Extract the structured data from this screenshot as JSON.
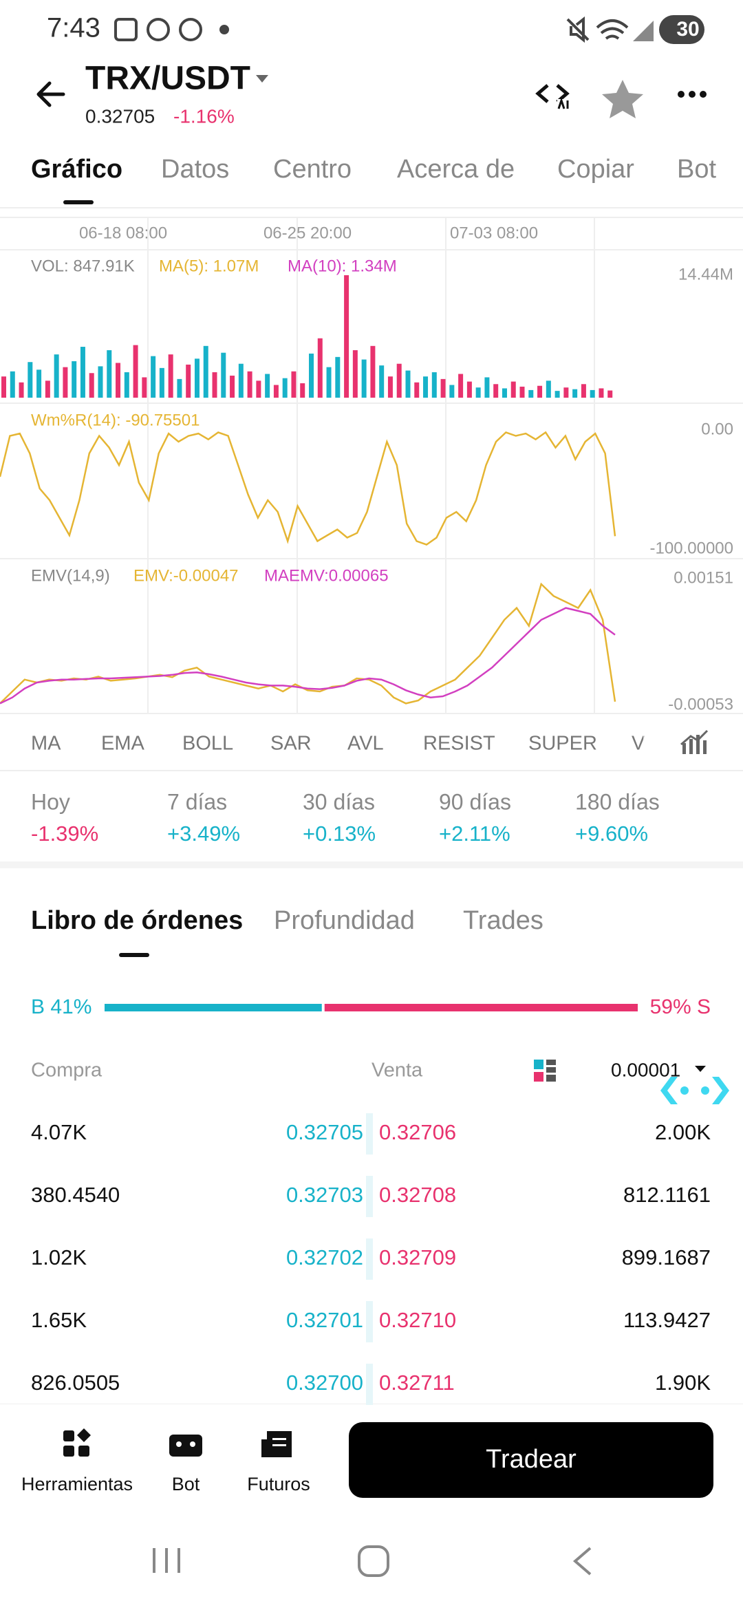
{
  "status_bar": {
    "time": "7:43",
    "battery": "30"
  },
  "header": {
    "pair": "TRX/USDT",
    "price": "0.32705",
    "change": "-1.16%"
  },
  "tabs": [
    "Gráfico",
    "Datos",
    "Centro",
    "Acerca de",
    "Copiar",
    "Bot"
  ],
  "chart": {
    "dates": [
      "06-18 08:00",
      "06-25 20:00",
      "07-03 08:00"
    ],
    "volume": {
      "labels": [
        "VOL: 847.91K",
        "MA(5): 1.07M",
        "MA(10): 1.34M"
      ],
      "ylim": [
        0,
        14.44
      ],
      "yticks": [
        {
          "value": 14.44,
          "label": "14.44M"
        }
      ],
      "values": [
        2.5,
        3.1,
        1.8,
        4.2,
        3.3,
        2.0,
        5.1,
        3.6,
        4.3,
        6.0,
        2.9,
        3.7,
        5.6,
        4.1,
        3.0,
        6.2,
        2.4,
        4.9,
        3.5,
        5.1,
        2.2,
        3.9,
        4.6,
        6.1,
        3.0,
        5.3,
        2.6,
        4.0,
        3.1,
        2.0,
        2.8,
        1.5,
        2.3,
        3.1,
        1.7,
        5.2,
        7.0,
        3.6,
        4.8,
        14.44,
        5.6,
        4.5,
        6.1,
        3.8,
        2.5,
        4.0,
        3.2,
        1.8,
        2.5,
        3.0,
        2.2,
        1.5,
        2.8,
        1.9,
        1.2,
        2.4,
        1.6,
        1.1,
        1.9,
        1.3,
        0.9,
        1.4,
        2.0,
        0.8,
        1.2,
        1.0,
        1.6,
        0.9,
        1.1,
        0.84791
      ],
      "up": [
        0,
        1,
        0,
        1,
        1,
        0,
        1,
        0,
        1,
        1,
        0,
        1,
        1,
        0,
        1,
        0,
        0,
        1,
        1,
        0,
        1,
        0,
        1,
        1,
        0,
        1,
        0,
        1,
        0,
        0,
        1,
        0,
        1,
        0,
        0,
        1,
        0,
        1,
        1,
        0,
        0,
        1,
        0,
        1,
        0,
        0,
        1,
        0,
        1,
        1,
        0,
        1,
        0,
        0,
        1,
        1,
        0,
        1,
        0,
        0,
        1,
        0,
        1,
        1,
        0,
        1,
        0,
        1,
        0,
        0
      ],
      "colors": [
        "#e8326e",
        "#17b2c9"
      ]
    },
    "wr": {
      "label": "Wm%R(14): -90.75501",
      "ylim": [
        -100,
        0
      ],
      "yticks": [
        {
          "value": 0,
          "label": "0.00"
        },
        {
          "value": -100,
          "label": "-100.00000"
        }
      ],
      "color": "#e5b533",
      "values": [
        -40,
        -5,
        -3,
        -20,
        -50,
        -60,
        -75,
        -90,
        -60,
        -20,
        -5,
        -15,
        -30,
        -10,
        -45,
        -60,
        -20,
        -3,
        -10,
        -5,
        -3,
        -8,
        -2,
        -5,
        -30,
        -55,
        -75,
        -60,
        -70,
        -95,
        -65,
        -80,
        -95,
        -90,
        -85,
        -92,
        -88,
        -70,
        -40,
        -10,
        -30,
        -80,
        -95,
        -98,
        -92,
        -75,
        -70,
        -78,
        -60,
        -30,
        -10,
        -2,
        -5,
        -3,
        -8,
        -2,
        -15,
        -5,
        -25,
        -10,
        -3,
        -20,
        -90.75501
      ]
    },
    "emv": {
      "labels": [
        "EMV(14,9)",
        "EMV:-0.00047",
        "MAEMV:0.00065"
      ],
      "ylim": [
        -0.00053,
        0.00151
      ],
      "yticks": [
        {
          "value": 0.00151,
          "label": "0.00151"
        },
        {
          "value": -0.00053,
          "label": "-0.00053"
        }
      ],
      "series": [
        {
          "color": "#e5b533",
          "values": [
            -0.0005,
            -0.0003,
            -0.0001,
            -0.00015,
            -0.0001,
            -0.00012,
            -8e-05,
            -0.0001,
            -5e-05,
            -0.00012,
            -0.0001,
            -8e-05,
            -5e-05,
            -2e-05,
            -6e-05,
            5e-05,
            0.0001,
            -5e-05,
            -0.0001,
            -0.00015,
            -0.0002,
            -0.00025,
            -0.0002,
            -0.0003,
            -0.00018,
            -0.00028,
            -0.0003,
            -0.00022,
            -0.0002,
            -8e-05,
            -0.0001,
            -0.0002,
            -0.0004,
            -0.0005,
            -0.00045,
            -0.0003,
            -0.0002,
            -0.0001,
            0.0001,
            0.0003,
            0.0006,
            0.0009,
            0.0011,
            0.0008,
            0.0015,
            0.0013,
            0.0012,
            0.0011,
            0.0014,
            0.0009,
            -0.00047
          ]
        },
        {
          "color": "#d23fc0",
          "values": [
            -0.0005,
            -0.0004,
            -0.00025,
            -0.00015,
            -0.00012,
            -0.0001,
            -0.0001,
            -9e-05,
            -8e-05,
            -8e-05,
            -7e-05,
            -6e-05,
            -5e-05,
            -4e-05,
            -2e-05,
            1e-05,
            2e-05,
            -1e-05,
            -5e-05,
            -0.0001,
            -0.00015,
            -0.00018,
            -0.0002,
            -0.0002,
            -0.00022,
            -0.00025,
            -0.00026,
            -0.00024,
            -0.0002,
            -0.00012,
            -8e-05,
            -0.0001,
            -0.00018,
            -0.00028,
            -0.00035,
            -0.0004,
            -0.00038,
            -0.0003,
            -0.0002,
            -5e-05,
            0.0001,
            0.0003,
            0.0005,
            0.0007,
            0.0009,
            0.001,
            0.0011,
            0.00105,
            0.001,
            0.0008,
            0.00065
          ]
        }
      ]
    }
  },
  "indicators": [
    "MA",
    "EMA",
    "BOLL",
    "SAR",
    "AVL",
    "RESIST",
    "SUPER",
    "V"
  ],
  "periods": [
    {
      "label": "Hoy",
      "change": "-1.39%"
    },
    {
      "label": "7 días",
      "change": "+3.49%"
    },
    {
      "label": "30 días",
      "change": "+0.13%"
    },
    {
      "label": "90 días",
      "change": "+2.11%"
    },
    {
      "label": "180 días",
      "change": "+9.60%"
    }
  ],
  "orderbook": {
    "tabs": [
      "Libro de órdenes",
      "Profundidad",
      "Trades"
    ],
    "buy_label": "B 41%",
    "sell_label": "59% S",
    "buy": 41,
    "sell": 59,
    "columns": [
      "Compra",
      "Venta"
    ],
    "precision": "0.00001",
    "rows": [
      [
        "4.07K",
        "0.32705",
        "0.32706",
        "2.00K"
      ],
      [
        "380.4540",
        "0.32703",
        "0.32708",
        "812.1161"
      ],
      [
        "1.02K",
        "0.32702",
        "0.32709",
        "899.1687"
      ],
      [
        "1.65K",
        "0.32701",
        "0.32710",
        "113.9427"
      ],
      [
        "826.0505",
        "0.32700",
        "0.32711",
        "1.90K"
      ]
    ]
  },
  "bottom_nav": {
    "items": [
      "Herramientas",
      "Bot",
      "Futuros"
    ],
    "trade": "Tradear"
  }
}
